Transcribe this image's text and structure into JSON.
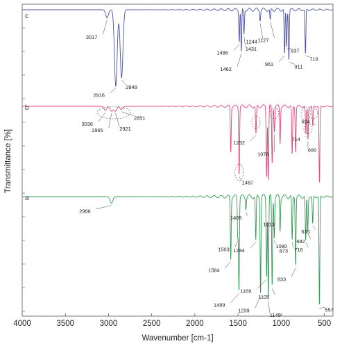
{
  "chart_data": {
    "type": "line",
    "xlabel": "Wavenumber [cm-1]",
    "ylabel": "Transmittance [%]",
    "xlim": [
      4000,
      400
    ],
    "x_reversed": true,
    "x_ticks": [
      4000,
      3500,
      3000,
      2500,
      2000,
      1500,
      1000,
      500
    ],
    "grid": false,
    "series": [
      {
        "name": "c",
        "color": "#4a4fa3",
        "baseline": 0.97,
        "peaks": [
          [
            3017,
            0.1
          ],
          [
            2916,
            0.93
          ],
          [
            2849,
            0.83
          ],
          [
            1486,
            0.38
          ],
          [
            1462,
            0.52
          ],
          [
            1431,
            0.3
          ],
          [
            1244,
            0.12
          ],
          [
            1127,
            0.14
          ],
          [
            961,
            0.55
          ],
          [
            937,
            0.45
          ],
          [
            911,
            0.6
          ],
          [
            719,
            0.55
          ]
        ],
        "annotations": [
          {
            "label": "c",
            "x": 4000
          },
          {
            "label": "3017",
            "x": 3017
          },
          {
            "label": "2916",
            "x": 2916
          },
          {
            "label": "2849",
            "x": 2849
          },
          {
            "label": "1486",
            "x": 1486
          },
          {
            "label": "1462",
            "x": 1462
          },
          {
            "label": "1431",
            "x": 1431
          },
          {
            "label": "1244",
            "x": 1244
          },
          {
            "label": "1127",
            "x": 1127
          },
          {
            "label": "961",
            "x": 961
          },
          {
            "label": "937",
            "x": 937
          },
          {
            "label": "911",
            "x": 911
          },
          {
            "label": "719",
            "x": 719
          }
        ]
      },
      {
        "name": "b",
        "color": "#e0457b",
        "baseline": 0.97,
        "peaks": [
          [
            3036,
            0.05
          ],
          [
            2965,
            0.06
          ],
          [
            2921,
            0.06
          ],
          [
            2851,
            0.04
          ],
          [
            1584,
            0.55
          ],
          [
            1487,
            0.82
          ],
          [
            1292,
            0.35
          ],
          [
            1169,
            0.85
          ],
          [
            1149,
            0.9
          ],
          [
            1105,
            0.7
          ],
          [
            1078,
            0.3
          ],
          [
            1013,
            0.45
          ],
          [
            873,
            0.6
          ],
          [
            833,
            0.55
          ],
          [
            714,
            0.35
          ],
          [
            690,
            0.4
          ],
          [
            634,
            0.25
          ],
          [
            557,
            0.95
          ]
        ],
        "annotations": [
          {
            "label": "b",
            "x": 4000
          },
          {
            "label": "3036",
            "x": 3036
          },
          {
            "label": "2965",
            "x": 2965
          },
          {
            "label": "2921",
            "x": 2921
          },
          {
            "label": "2851",
            "x": 2851
          },
          {
            "label": "1487",
            "x": 1487
          },
          {
            "label": "1292",
            "x": 1292
          },
          {
            "label": "1078",
            "x": 1078
          },
          {
            "label": "714",
            "x": 714
          },
          {
            "label": "690",
            "x": 690
          },
          {
            "label": "634",
            "x": 634
          }
        ]
      },
      {
        "name": "a",
        "color": "#2f9a52",
        "baseline": 0.97,
        "peaks": [
          [
            2966,
            0.06
          ],
          [
            1584,
            0.55
          ],
          [
            1503,
            0.35
          ],
          [
            1489,
            0.82
          ],
          [
            1409,
            0.1
          ],
          [
            1294,
            0.4
          ],
          [
            1239,
            0.85
          ],
          [
            1169,
            0.7
          ],
          [
            1149,
            0.9
          ],
          [
            1105,
            0.8
          ],
          [
            1080,
            0.35
          ],
          [
            1013,
            0.3
          ],
          [
            873,
            0.4
          ],
          [
            833,
            0.6
          ],
          [
            716,
            0.4
          ],
          [
            692,
            0.3
          ],
          [
            635,
            0.25
          ],
          [
            557,
            0.98
          ]
        ],
        "annotations": [
          {
            "label": "a",
            "x": 4000
          },
          {
            "label": "2966",
            "x": 2966
          },
          {
            "label": "1584",
            "x": 1584
          },
          {
            "label": "1503",
            "x": 1503
          },
          {
            "label": "1489",
            "x": 1489
          },
          {
            "label": "1409",
            "x": 1409
          },
          {
            "label": "1294",
            "x": 1294
          },
          {
            "label": "1239",
            "x": 1239
          },
          {
            "label": "1169",
            "x": 1169
          },
          {
            "label": "1149",
            "x": 1149
          },
          {
            "label": "1105",
            "x": 1105
          },
          {
            "label": "1080",
            "x": 1080
          },
          {
            "label": "1013",
            "x": 1013
          },
          {
            "label": "873",
            "x": 873
          },
          {
            "label": "833",
            "x": 833
          },
          {
            "label": "716",
            "x": 716
          },
          {
            "label": "692",
            "x": 692
          },
          {
            "label": "635",
            "x": 635
          },
          {
            "label": "557",
            "x": 557
          }
        ]
      }
    ]
  }
}
